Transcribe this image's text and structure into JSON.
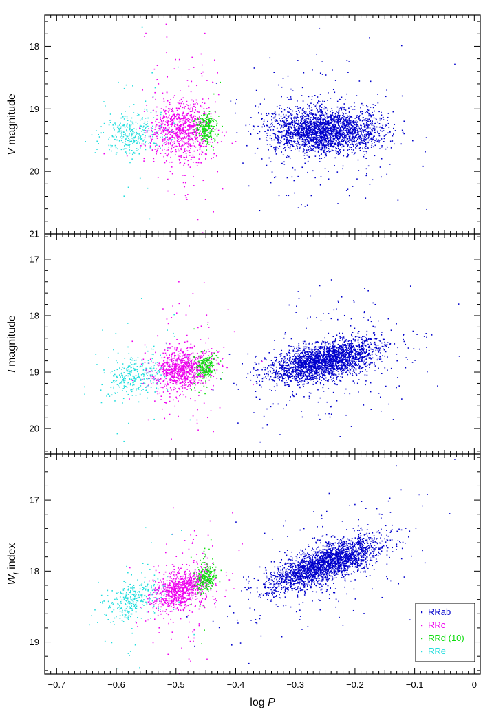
{
  "colors": {
    "RRab": "#0000cc",
    "RRc": "#ee00ee",
    "RRd": "#11dd11",
    "RRe": "#22dddd",
    "frame": "#000000"
  },
  "legend": {
    "placement": "lower-right of bottom panel",
    "entries": [
      {
        "key": "RRab",
        "label": "RRab"
      },
      {
        "key": "RRc",
        "label": "RRc"
      },
      {
        "key": "RRd",
        "label": "RRd (10)"
      },
      {
        "key": "RRe",
        "label": "RRe"
      }
    ]
  },
  "chart_data": {
    "type": "scatter",
    "layout": "three vertically stacked panels sharing the x axis",
    "xlabel": "log P",
    "xlim": [
      -0.72,
      0.01
    ],
    "xticks": [
      -0.7,
      -0.6,
      -0.5,
      -0.4,
      -0.3,
      -0.2,
      -0.1,
      0
    ],
    "xtick_labels": [
      "−0.7",
      "−0.6",
      "−0.5",
      "−0.4",
      "−0.3",
      "−0.2",
      "−0.1",
      "0"
    ],
    "grid": false,
    "panels": [
      {
        "id": "V",
        "ylabel": "V magnitude",
        "ylim": [
          21.0,
          17.5
        ],
        "y_inverted": true,
        "yticks": [
          18,
          19,
          20,
          21
        ],
        "ytick_labels": [
          "18",
          "19",
          "20",
          "21"
        ],
        "series": [
          {
            "name": "RRab",
            "center_x": -0.25,
            "center_y": 19.35
          },
          {
            "name": "RRc",
            "center_x": -0.49,
            "center_y": 19.35
          },
          {
            "name": "RRd",
            "center_x": -0.45,
            "center_y": 19.3
          },
          {
            "name": "RRe",
            "center_x": -0.57,
            "center_y": 19.4
          }
        ]
      },
      {
        "id": "I",
        "ylabel": "I magnitude",
        "ylim": [
          20.45,
          16.55
        ],
        "y_inverted": true,
        "yticks": [
          17,
          18,
          19,
          20
        ],
        "ytick_labels": [
          "17",
          "18",
          "19",
          "20"
        ],
        "series": [
          {
            "name": "RRab",
            "center_x": -0.25,
            "center_y": 18.8
          },
          {
            "name": "RRc",
            "center_x": -0.49,
            "center_y": 18.95
          },
          {
            "name": "RRd",
            "center_x": -0.45,
            "center_y": 18.9
          },
          {
            "name": "RRe",
            "center_x": -0.57,
            "center_y": 19.05
          }
        ]
      },
      {
        "id": "W",
        "ylabel": "W_I index",
        "ylabel_main": "W",
        "ylabel_sub": "I",
        "ylabel_rest": "index",
        "ylim": [
          19.45,
          16.35
        ],
        "y_inverted": true,
        "yticks": [
          17,
          18,
          19
        ],
        "ytick_labels": [
          "17",
          "18",
          "19"
        ],
        "series": [
          {
            "name": "RRab",
            "center_x": -0.25,
            "center_y": 17.9
          },
          {
            "name": "RRc",
            "center_x": -0.49,
            "center_y": 18.25
          },
          {
            "name": "RRd",
            "center_x": -0.45,
            "center_y": 18.1
          },
          {
            "name": "RRe",
            "center_x": -0.57,
            "center_y": 18.4
          }
        ]
      }
    ]
  }
}
